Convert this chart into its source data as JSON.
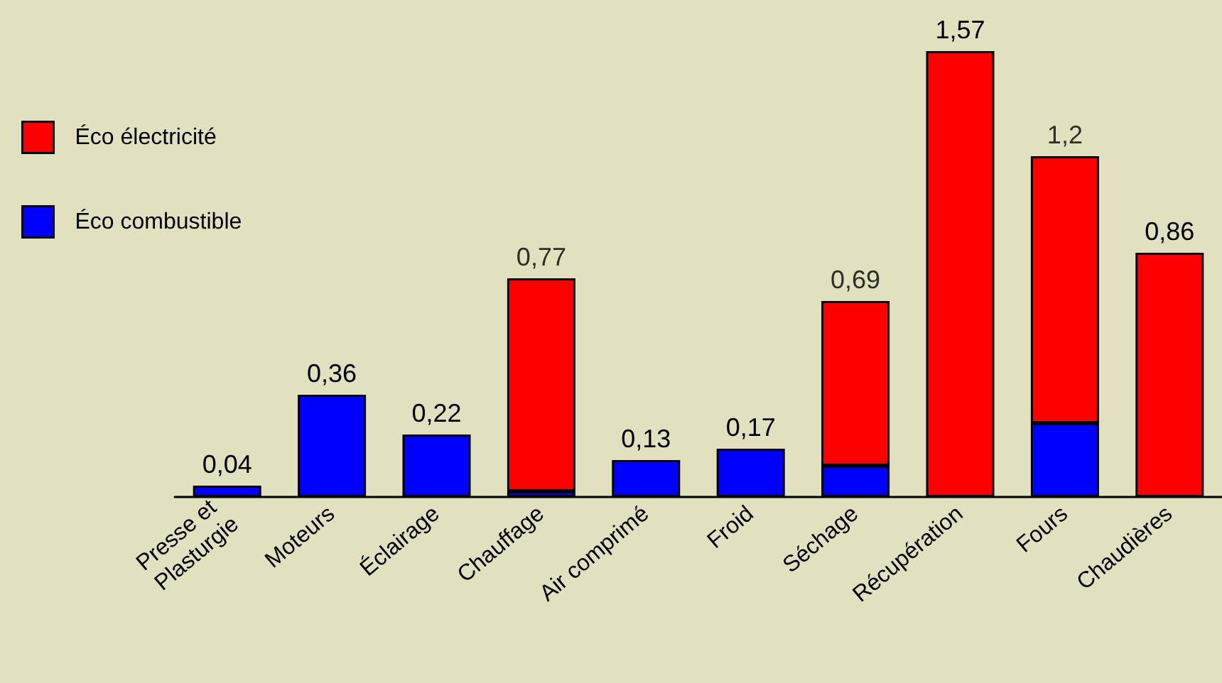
{
  "chart_data": {
    "type": "bar",
    "stacked": true,
    "categories": [
      "Presse et Plasturgie",
      "Moteurs",
      "Éclairage",
      "Chauffage",
      "Air comprimé",
      "Froid",
      "Séchage",
      "Récupération",
      "Fours",
      "Chaudières"
    ],
    "series": [
      {
        "name": "Éco combustible",
        "color": "#0000ff",
        "values": [
          0.04,
          0.36,
          0.22,
          0.02,
          0.13,
          0.17,
          0.11,
          null,
          0.26,
          null
        ],
        "value_labels": [
          "0,04",
          "0,36",
          "0,22",
          null,
          "0,13",
          "0,17",
          null,
          null,
          null,
          null
        ]
      },
      {
        "name": "Éco électricité",
        "color": "#ff0000",
        "values": [
          null,
          null,
          null,
          0.75,
          null,
          null,
          0.58,
          1.57,
          0.94,
          0.86
        ],
        "value_labels": [
          null,
          null,
          null,
          null,
          null,
          null,
          null,
          "1,57",
          null,
          "0,86"
        ]
      }
    ],
    "totals": [
      null,
      null,
      null,
      "0,77",
      null,
      null,
      "0,69",
      null,
      "1,2",
      null
    ],
    "legend": "top left"
  }
}
